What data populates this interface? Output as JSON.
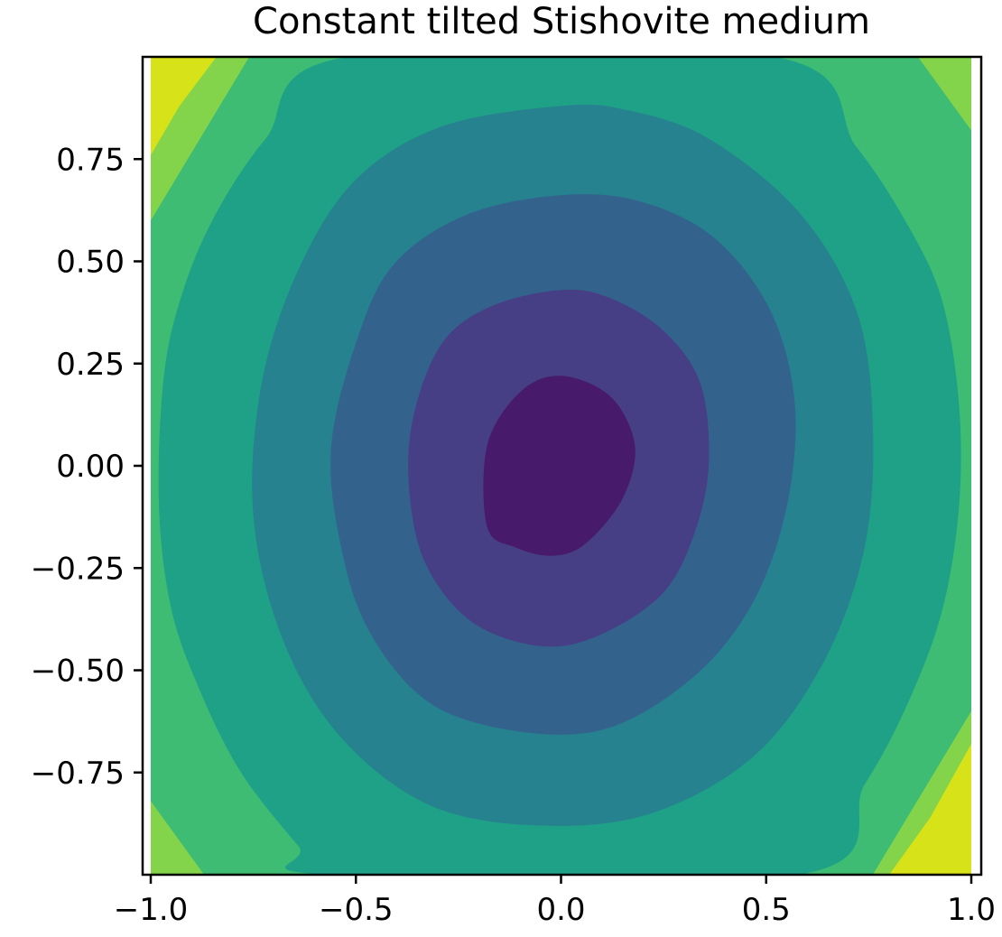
{
  "chart_data": {
    "type": "contourf",
    "title": "Constant tilted Stishovite medium",
    "xlabel": "",
    "ylabel": "",
    "xlim": [
      -1.0,
      1.0
    ],
    "ylim": [
      -1.0,
      1.0
    ],
    "x_ticks": [
      -1.0,
      -0.5,
      0.0,
      0.5,
      1.0
    ],
    "x_tick_labels": [
      "−1.0",
      "−0.5",
      "0.0",
      "0.5",
      "1.0"
    ],
    "y_ticks": [
      -0.75,
      -0.5,
      -0.25,
      0.0,
      0.25,
      0.5,
      0.75
    ],
    "y_tick_labels": [
      "−0.75",
      "−0.50",
      "−0.25",
      "0.00",
      "0.25",
      "0.50",
      "0.75"
    ],
    "grid": false,
    "colormap": "viridis",
    "level_colors": [
      "#481a6c",
      "#463f86",
      "#33638d",
      "#26828e",
      "#1fa187",
      "#3fbc73",
      "#84d44b",
      "#d8e219"
    ],
    "contour_boundaries": [
      {
        "level": 1,
        "points": [
          [
            -0.18,
            -0.15
          ],
          [
            -0.18,
            0.05
          ],
          [
            -0.1,
            0.18
          ],
          [
            0.0,
            0.22
          ],
          [
            0.12,
            0.17
          ],
          [
            0.18,
            0.05
          ],
          [
            0.15,
            -0.08
          ],
          [
            0.06,
            -0.19
          ],
          [
            -0.02,
            -0.22
          ],
          [
            -0.11,
            -0.2
          ]
        ]
      },
      {
        "level": 2,
        "points": [
          [
            0.0,
            0.43
          ],
          [
            -0.17,
            0.39
          ],
          [
            -0.29,
            0.3
          ],
          [
            -0.36,
            0.12
          ],
          [
            -0.37,
            -0.06
          ],
          [
            -0.33,
            -0.24
          ],
          [
            -0.22,
            -0.38
          ],
          [
            -0.06,
            -0.44
          ],
          [
            0.08,
            -0.42
          ],
          [
            0.24,
            -0.32
          ],
          [
            0.32,
            -0.18
          ],
          [
            0.36,
            0.0
          ],
          [
            0.34,
            0.2
          ],
          [
            0.25,
            0.33
          ],
          [
            0.12,
            0.41
          ]
        ]
      },
      {
        "level": 3,
        "points": [
          [
            -0.02,
            0.66
          ],
          [
            -0.24,
            0.61
          ],
          [
            -0.41,
            0.49
          ],
          [
            -0.5,
            0.3
          ],
          [
            -0.56,
            0.05
          ],
          [
            -0.54,
            -0.18
          ],
          [
            -0.47,
            -0.4
          ],
          [
            -0.32,
            -0.58
          ],
          [
            -0.1,
            -0.65
          ],
          [
            0.12,
            -0.64
          ],
          [
            0.33,
            -0.51
          ],
          [
            0.47,
            -0.33
          ],
          [
            0.55,
            -0.1
          ],
          [
            0.57,
            0.15
          ],
          [
            0.51,
            0.38
          ],
          [
            0.37,
            0.56
          ],
          [
            0.18,
            0.65
          ]
        ]
      },
      {
        "level": 4,
        "points": [
          [
            0.0,
            0.88
          ],
          [
            -0.29,
            0.83
          ],
          [
            -0.5,
            0.7
          ],
          [
            -0.64,
            0.48
          ],
          [
            -0.73,
            0.2
          ],
          [
            -0.75,
            -0.12
          ],
          [
            -0.68,
            -0.42
          ],
          [
            -0.54,
            -0.66
          ],
          [
            -0.32,
            -0.83
          ],
          [
            -0.05,
            -0.88
          ],
          [
            0.22,
            -0.85
          ],
          [
            0.47,
            -0.71
          ],
          [
            0.64,
            -0.48
          ],
          [
            0.74,
            -0.2
          ],
          [
            0.76,
            0.1
          ],
          [
            0.72,
            0.38
          ],
          [
            0.58,
            0.62
          ],
          [
            0.36,
            0.8
          ],
          [
            0.16,
            0.87
          ]
        ]
      },
      {
        "level": 5,
        "points": [
          [
            -0.52,
            1.0
          ],
          [
            -0.72,
            0.8
          ],
          [
            -0.85,
            0.6
          ],
          [
            -0.93,
            0.4
          ],
          [
            -0.97,
            0.2
          ],
          [
            -0.98,
            -0.1
          ],
          [
            -0.95,
            -0.35
          ],
          [
            -0.88,
            -0.55
          ],
          [
            -0.78,
            -0.75
          ],
          [
            -0.64,
            -0.93
          ],
          [
            -0.57,
            -1.0
          ],
          [
            0.58,
            -1.0
          ],
          [
            0.74,
            -0.78
          ],
          [
            0.85,
            -0.57
          ],
          [
            0.93,
            -0.35
          ],
          [
            0.97,
            -0.1
          ],
          [
            0.97,
            0.15
          ],
          [
            0.93,
            0.4
          ],
          [
            0.85,
            0.58
          ],
          [
            0.72,
            0.78
          ],
          [
            0.52,
            1.0
          ]
        ]
      },
      {
        "level": 6,
        "points": [
          [
            -0.76,
            1.0
          ],
          [
            -1.0,
            0.6
          ],
          [
            -1.0,
            -0.82
          ],
          [
            -0.87,
            -1.0
          ],
          [
            0.76,
            -1.0
          ],
          [
            1.0,
            -0.6
          ],
          [
            1.0,
            0.82
          ],
          [
            0.87,
            1.0
          ]
        ]
      },
      {
        "level": 7,
        "points": [
          [
            -0.84,
            1.0
          ],
          [
            -0.93,
            0.88
          ],
          [
            -1.0,
            0.76
          ],
          [
            -1.0,
            -1.0
          ],
          [
            0.8,
            -1.0
          ],
          [
            0.9,
            -0.86
          ],
          [
            1.0,
            -0.68
          ],
          [
            1.0,
            1.0
          ]
        ]
      }
    ]
  }
}
